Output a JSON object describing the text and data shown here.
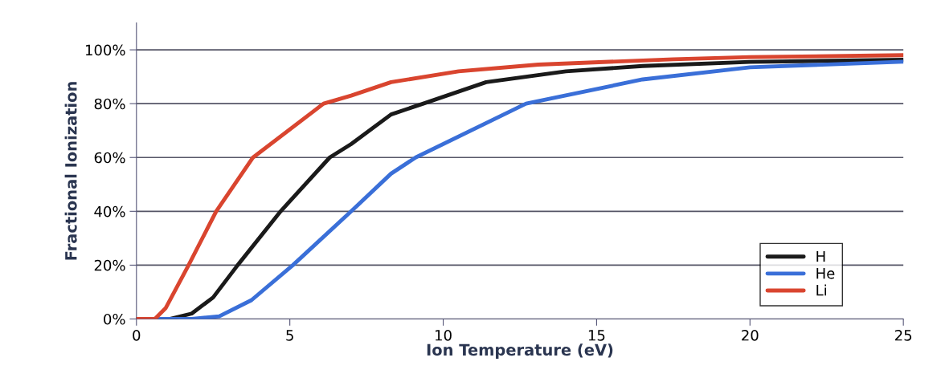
{
  "chart_data": {
    "type": "line",
    "xlabel": "Ion Temperature (eV)",
    "ylabel": "Fractional Ionization",
    "xlim": [
      0,
      25
    ],
    "xticks": [
      0,
      5,
      10,
      15,
      20,
      25
    ],
    "ylim": [
      0,
      110
    ],
    "yticks": [
      {
        "value": 0,
        "label": "0%"
      },
      {
        "value": 20,
        "label": "20%"
      },
      {
        "value": 40,
        "label": "40%"
      },
      {
        "value": 60,
        "label": "60%"
      },
      {
        "value": 80,
        "label": "80%"
      },
      {
        "value": 100,
        "label": "100%"
      }
    ],
    "grid": "y",
    "legend": "bottom right",
    "marker": "none",
    "line_style": "solid",
    "series": [
      {
        "name": "H",
        "color": "#1a1a1a",
        "x": [
          0,
          1.1,
          1.8,
          2.5,
          3.3,
          4.7,
          6.3,
          7.0,
          8.3,
          9.35,
          11.4,
          14.0,
          16.5,
          20,
          25
        ],
        "values": [
          0,
          0,
          2,
          8,
          20,
          40,
          60,
          65,
          76,
          80,
          88,
          92,
          94,
          95.5,
          96.3
        ]
      },
      {
        "name": "He",
        "color": "#3a6fd8",
        "x": [
          0,
          1.8,
          2.7,
          3.75,
          5.1,
          7.0,
          8.3,
          9.1,
          12.7,
          16.5,
          20,
          25
        ],
        "values": [
          0,
          0,
          1,
          7,
          20,
          40,
          54,
          60,
          80,
          89,
          93.5,
          95.6
        ]
      },
      {
        "name": "Li",
        "color": "#d9452f",
        "x": [
          0,
          0.6,
          0.95,
          1.7,
          2.6,
          3.8,
          6.1,
          7.0,
          8.3,
          10.5,
          13.1,
          17.5,
          20,
          25
        ],
        "values": [
          0,
          0,
          4,
          20,
          40,
          60,
          80,
          83,
          88,
          92,
          94.5,
          96.5,
          97.3,
          98
        ]
      }
    ]
  }
}
